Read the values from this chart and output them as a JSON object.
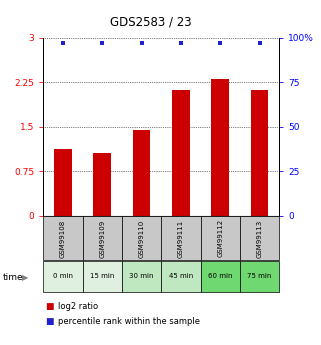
{
  "title": "GDS2583 / 23",
  "samples": [
    "GSM99108",
    "GSM99109",
    "GSM99110",
    "GSM99111",
    "GSM99112",
    "GSM99113"
  ],
  "time_labels": [
    "0 min",
    "15 min",
    "30 min",
    "45 min",
    "60 min",
    "75 min"
  ],
  "log2_values": [
    1.12,
    1.05,
    1.45,
    2.12,
    2.3,
    2.12
  ],
  "percentile_values": [
    97,
    97,
    97,
    97,
    97,
    97
  ],
  "bar_color": "#cc0000",
  "dot_color": "#2222cc",
  "ylim_left": [
    0,
    3
  ],
  "ylim_right": [
    0,
    100
  ],
  "yticks_left": [
    0,
    0.75,
    1.5,
    2.25,
    3
  ],
  "yticks_right": [
    0,
    25,
    50,
    75,
    100
  ],
  "gsm_bg": "#c8c8c8",
  "time_bg_colors": [
    "#e0f0e0",
    "#e0f0e0",
    "#c0e8c0",
    "#c0e8c0",
    "#70d870",
    "#70d870"
  ],
  "legend_label_red": "log2 ratio",
  "legend_label_blue": "percentile rank within the sample"
}
